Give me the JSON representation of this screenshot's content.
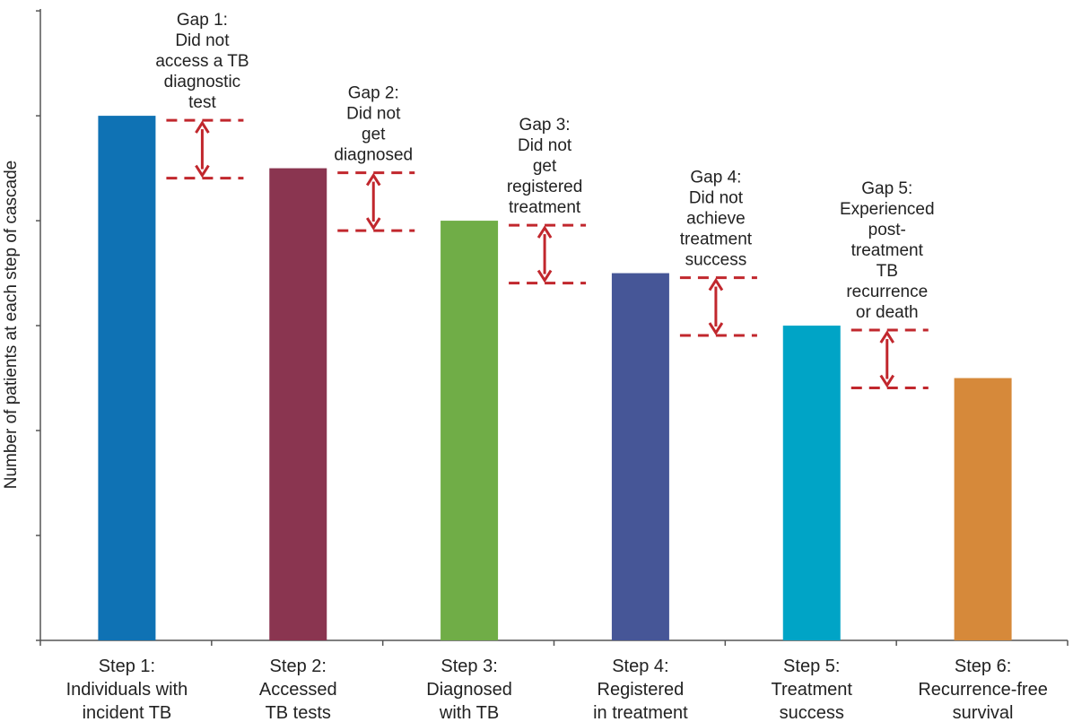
{
  "chart_data": {
    "type": "bar",
    "ylabel": "Number of patients at each step of cascade",
    "ylim": [
      0,
      6
    ],
    "grid": false,
    "categories": [
      [
        "Step 1:",
        "Individuals with",
        "incident TB"
      ],
      [
        "Step 2:",
        "Accessed",
        "TB tests"
      ],
      [
        "Step 3:",
        "Diagnosed",
        "with TB"
      ],
      [
        "Step 4:",
        "Registered",
        "in treatment"
      ],
      [
        "Step 5:",
        "Treatment",
        "success"
      ],
      [
        "Step 6:",
        "Recurrence-free",
        "survival"
      ]
    ],
    "values": [
      5.0,
      4.5,
      4.0,
      3.5,
      3.0,
      2.5
    ],
    "colors": [
      "#0f72b4",
      "#8a3550",
      "#70ad47",
      "#465697",
      "#00a4c6",
      "#d6893a"
    ],
    "gap_color": "#c1272d",
    "gaps": [
      {
        "lines": [
          "Gap 1:",
          "Did not",
          "access a TB",
          "diagnostic",
          "test"
        ]
      },
      {
        "lines": [
          "Gap 2:",
          "Did not",
          "get",
          "diagnosed"
        ]
      },
      {
        "lines": [
          "Gap 3:",
          "Did not",
          "get",
          "registered",
          "treatment"
        ]
      },
      {
        "lines": [
          "Gap 4:",
          "Did not",
          "achieve",
          "treatment",
          "success"
        ]
      },
      {
        "lines": [
          "Gap 5:",
          "Experienced",
          "post-",
          "treatment",
          "TB",
          "recurrence",
          "or death"
        ]
      }
    ]
  }
}
